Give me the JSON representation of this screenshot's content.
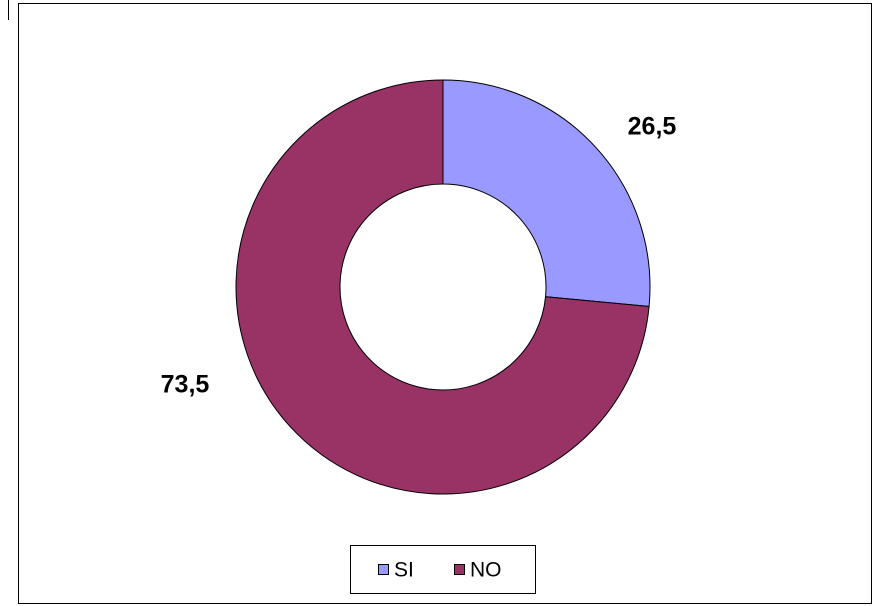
{
  "chart_data": {
    "type": "donut",
    "categories": [
      "SI",
      "NO"
    ],
    "values": [
      26.5,
      73.5
    ],
    "value_labels": [
      "26,5",
      "73,5"
    ],
    "colors": [
      "#9999ff",
      "#993366"
    ],
    "legend": "bottom"
  }
}
